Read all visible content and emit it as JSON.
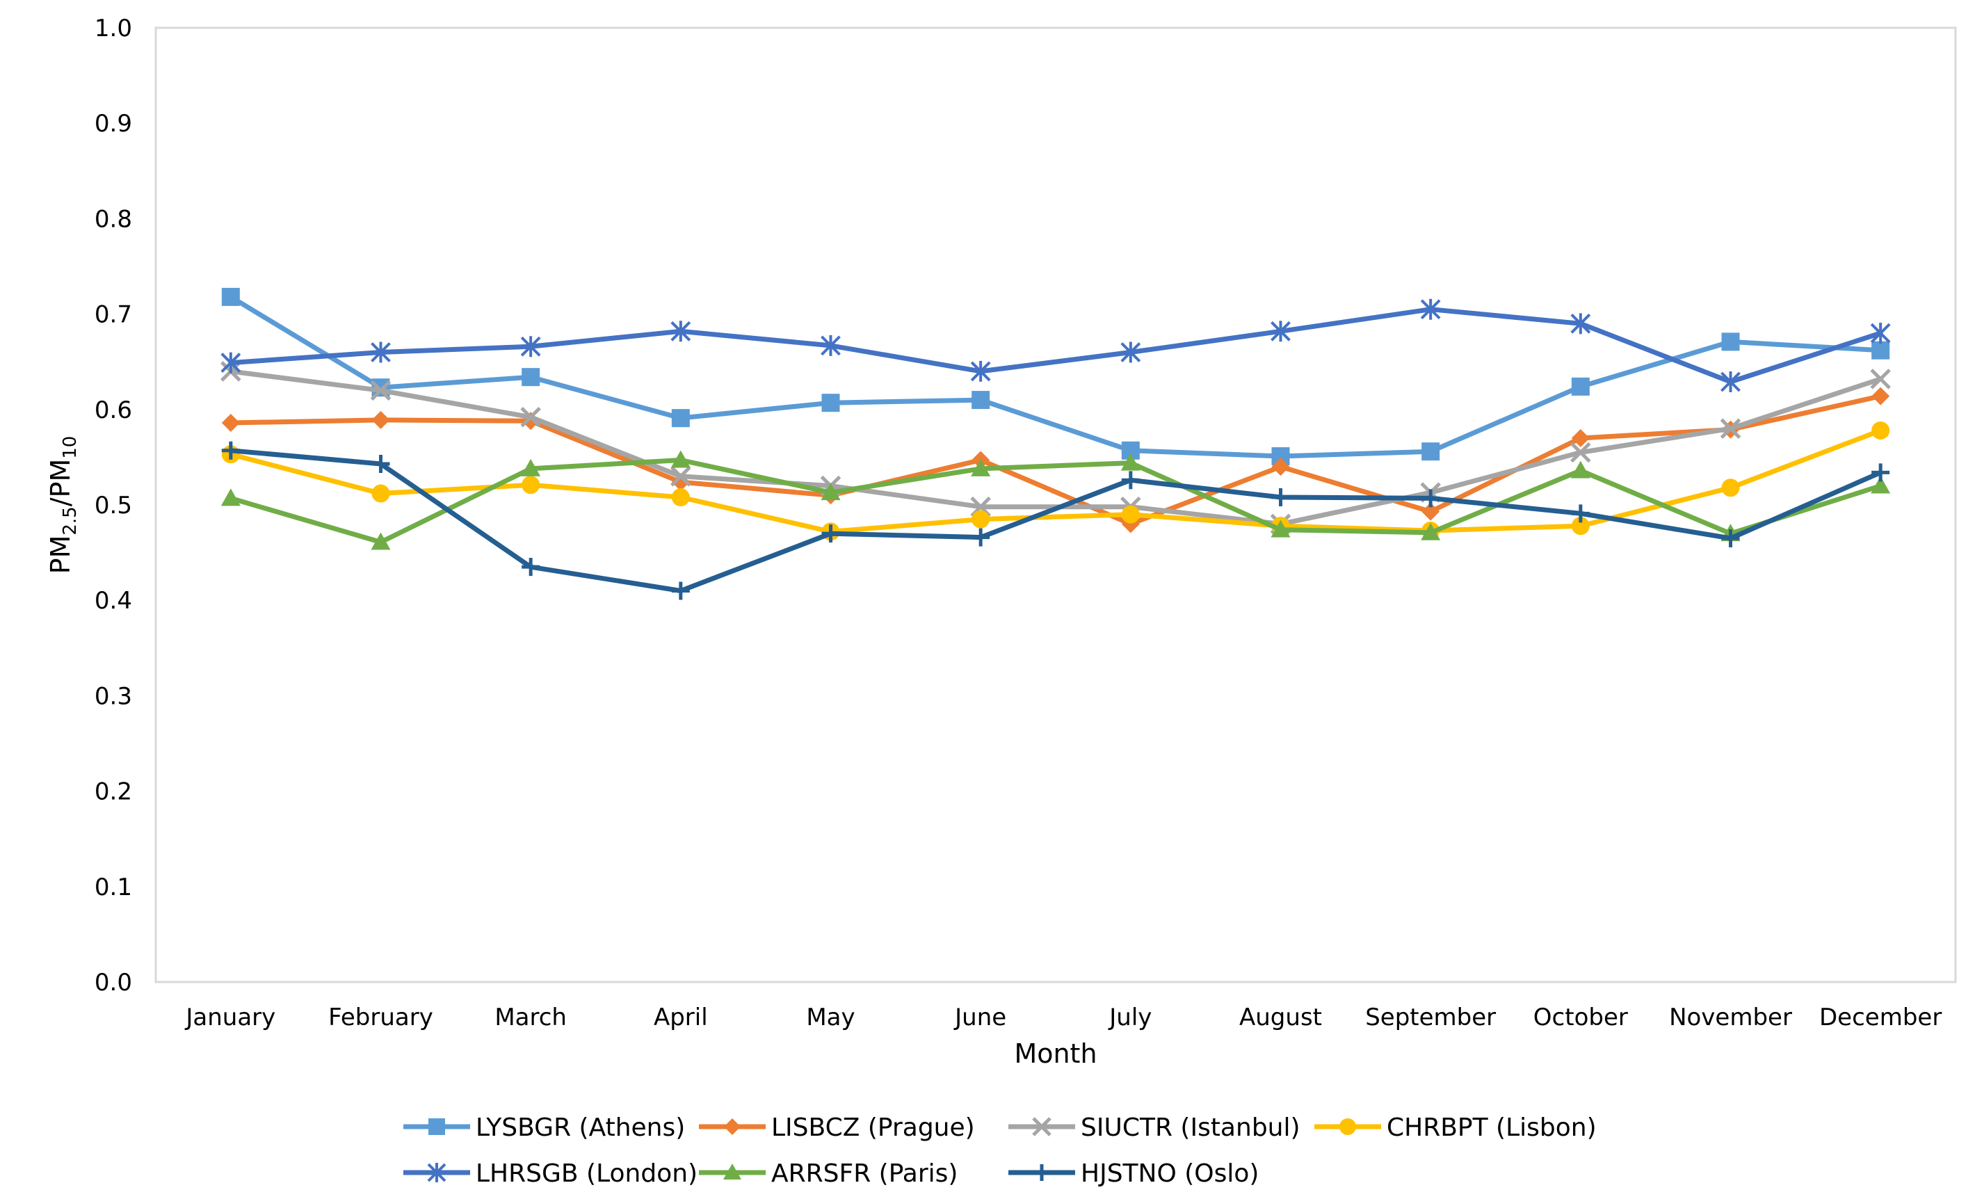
{
  "chart_data": {
    "type": "line",
    "title": "",
    "xlabel": "Month",
    "ylabel": "PM2.5/PM10",
    "ylabel_parts": {
      "a": "PM",
      "a_sub": "2.5",
      "sep": "/",
      "b": "PM",
      "b_sub": "10"
    },
    "ylim": [
      0,
      1
    ],
    "yticks": [
      "0.0",
      "0.1",
      "0.2",
      "0.3",
      "0.4",
      "0.5",
      "0.6",
      "0.7",
      "0.8",
      "0.9",
      "1.0"
    ],
    "categories": [
      "January",
      "February",
      "March",
      "April",
      "May",
      "June",
      "July",
      "August",
      "September",
      "October",
      "November",
      "December"
    ],
    "legend_position": "bottom",
    "series": [
      {
        "name": "LYSBGR (Athens)",
        "color": "#5B9BD5",
        "marker": "square",
        "values": [
          0.718,
          0.623,
          0.634,
          0.591,
          0.607,
          0.61,
          0.557,
          0.551,
          0.556,
          0.624,
          0.671,
          0.662
        ]
      },
      {
        "name": "LISBCZ (Prague)",
        "color": "#ED7D31",
        "marker": "diamond",
        "values": [
          0.586,
          0.589,
          0.588,
          0.524,
          0.51,
          0.547,
          0.48,
          0.54,
          0.493,
          0.57,
          0.579,
          0.614
        ]
      },
      {
        "name": "SIUCTR (Istanbul)",
        "color": "#A5A5A5",
        "marker": "x",
        "values": [
          0.64,
          0.62,
          0.592,
          0.53,
          0.52,
          0.498,
          0.498,
          0.48,
          0.513,
          0.555,
          0.58,
          0.632
        ]
      },
      {
        "name": "CHRBPT (Lisbon)",
        "color": "#FFC000",
        "marker": "circle",
        "values": [
          0.553,
          0.512,
          0.521,
          0.508,
          0.472,
          0.485,
          0.49,
          0.478,
          0.473,
          0.478,
          0.518,
          0.578
        ]
      },
      {
        "name": "LHRSGB (London)",
        "color": "#4472C4",
        "marker": "star",
        "values": [
          0.649,
          0.66,
          0.666,
          0.682,
          0.667,
          0.64,
          0.66,
          0.682,
          0.705,
          0.69,
          0.629,
          0.68
        ]
      },
      {
        "name": "ARRSFR (Paris)",
        "color": "#70AD47",
        "marker": "triangle",
        "values": [
          0.507,
          0.461,
          0.538,
          0.547,
          0.513,
          0.538,
          0.544,
          0.474,
          0.471,
          0.536,
          0.47,
          0.52
        ]
      },
      {
        "name": "HJSTNO (Oslo)",
        "color": "#255E91",
        "marker": "plus",
        "values": [
          0.557,
          0.543,
          0.435,
          0.41,
          0.47,
          0.466,
          0.526,
          0.508,
          0.507,
          0.491,
          0.465,
          0.534
        ]
      }
    ]
  }
}
